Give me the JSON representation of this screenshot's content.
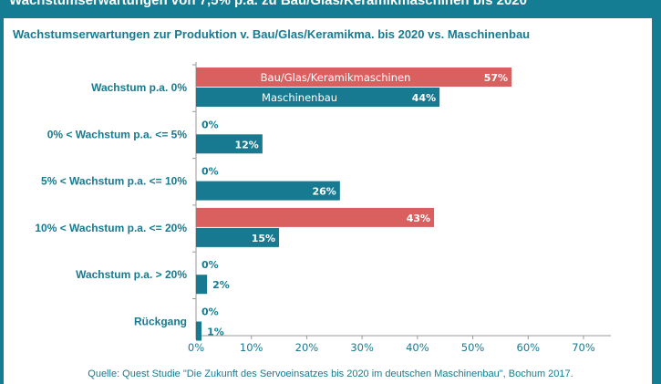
{
  "header": {
    "title": "Wachstumserwartungen von 7,5% p.a. zu Bau/Glas/Keramikmaschinen bis 2020"
  },
  "chart_data": {
    "type": "bar",
    "orientation": "horizontal",
    "title": "Wachstumserwartungen zur Produktion v. Bau/Glas/Keramikma. bis 2020 vs. Maschinenbau",
    "categories": [
      "Wachstum p.a. 0%",
      "0% < Wachstum p.a. <= 5%",
      "5% < Wachstum p.a. <= 10%",
      "10% < Wachstum p.a. <= 20%",
      "Wachstum p.a. > 20%",
      "Rückgang"
    ],
    "series": [
      {
        "name": "Bau/Glas/Keramikmaschinen",
        "color": "#d9605e",
        "values": [
          57,
          0,
          0,
          43,
          0,
          0
        ]
      },
      {
        "name": "Maschinenbau",
        "color": "#177a90",
        "values": [
          44,
          12,
          26,
          15,
          2,
          1
        ]
      }
    ],
    "xlim": [
      0,
      70
    ],
    "xticks": [
      "0%",
      "10%",
      "20%",
      "30%",
      "40%",
      "50%",
      "60%",
      "70%"
    ],
    "legend": "inline-in-bars",
    "grid": false
  },
  "source": "Quelle: Quest Studie \"Die Zukunft des Servoeinsatzes bis 2020 im  deutschen Maschinenbau\", Bochum 2017."
}
